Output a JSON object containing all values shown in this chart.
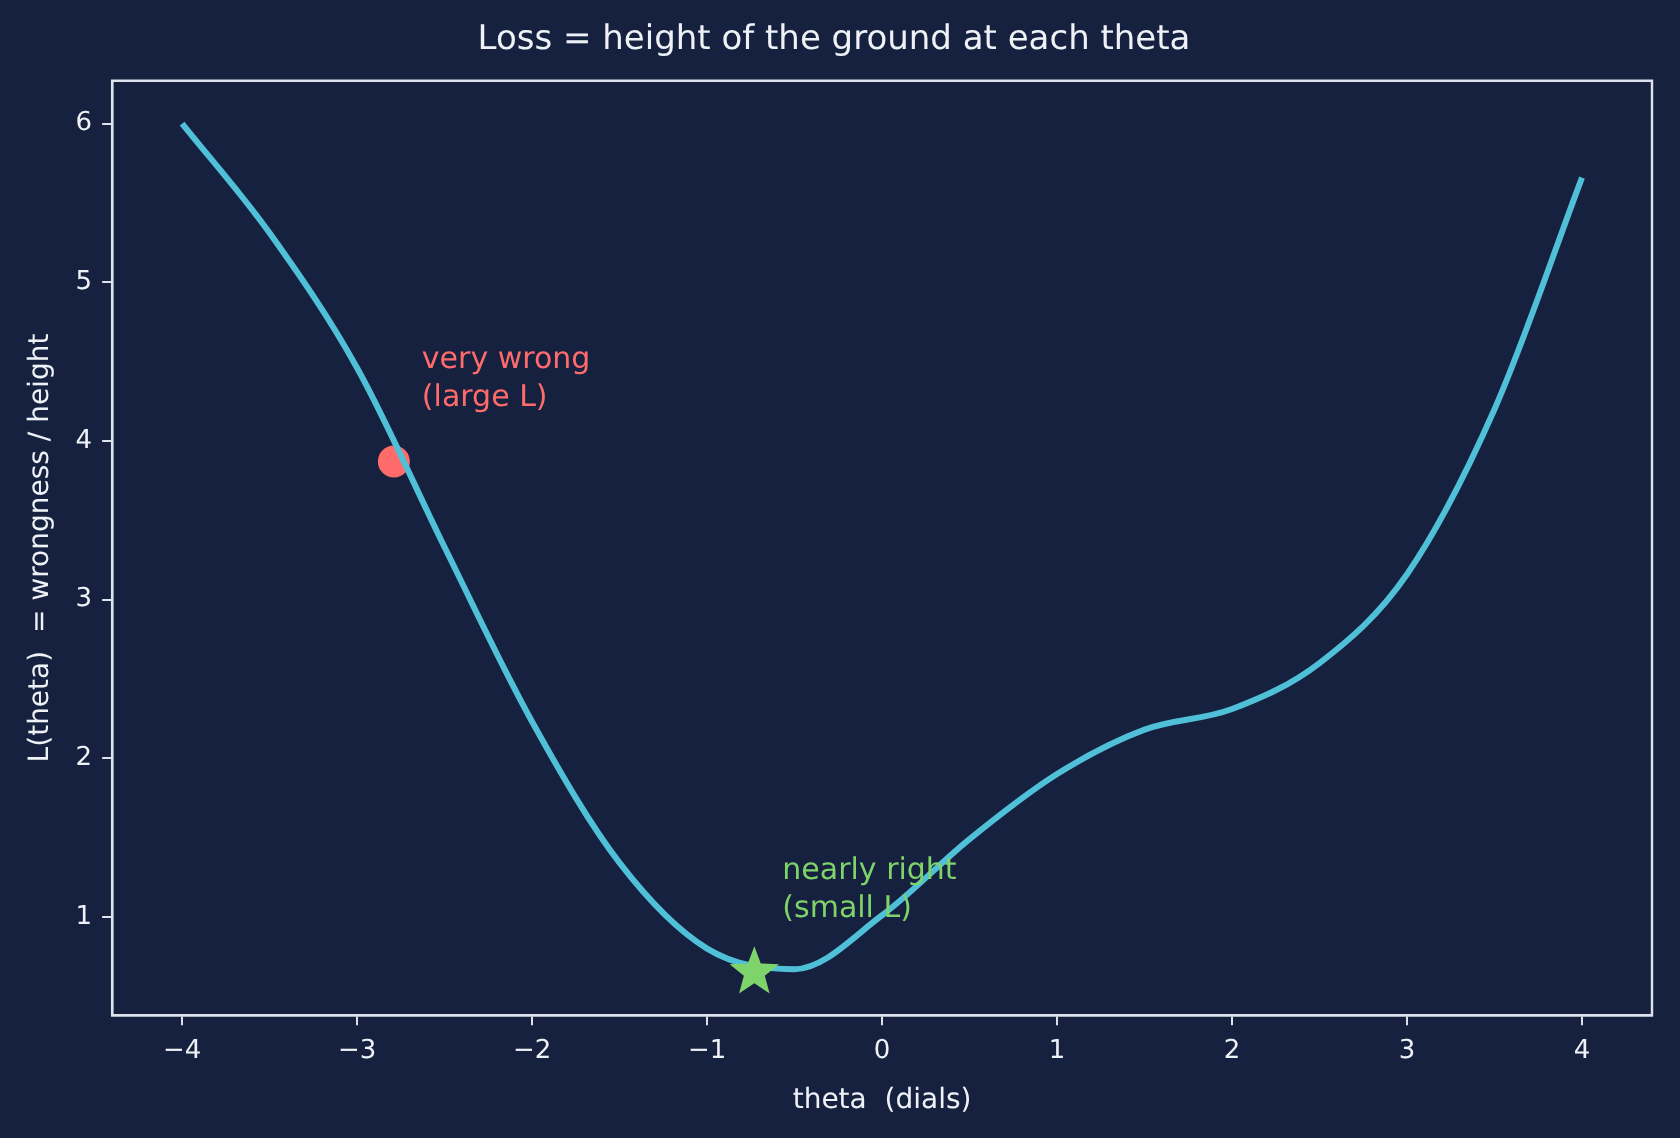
{
  "chart_data": {
    "type": "line",
    "title": "Loss = height of the ground at each theta",
    "xlabel": "theta  (dials)",
    "ylabel": "L(theta)  = wrongness / height",
    "xlim": [
      -4.4,
      4.4
    ],
    "xticks": [
      -4,
      -3,
      -2,
      -1,
      0,
      1,
      2,
      3,
      4
    ],
    "ylim": [
      0.38,
      6.27
    ],
    "yticks": [
      1,
      2,
      3,
      4,
      5,
      6
    ],
    "grid": false,
    "line_style": "solid",
    "series": [
      {
        "color": "#4fc0d8",
        "marker": "none",
        "x": [
          -4,
          -3.5,
          -3,
          -2.5,
          -2,
          -1.5,
          -1,
          -0.5,
          0,
          0.5,
          1,
          1.5,
          2,
          2.5,
          3,
          3.5,
          4
        ],
        "values": [
          6.0,
          5.31,
          4.46,
          3.33,
          2.23,
          1.34,
          0.8,
          0.67,
          1.01,
          1.49,
          1.9,
          2.18,
          2.31,
          2.6,
          3.16,
          4.2,
          5.66
        ]
      },
      {
        "type": "scatter",
        "color": "#ff6b6b",
        "marker": "circle",
        "x": [
          -2.79
        ],
        "values": [
          3.87
        ]
      },
      {
        "type": "scatter",
        "color": "#7ed36b",
        "marker": "star",
        "x": [
          -0.73
        ],
        "values": [
          0.65
        ]
      }
    ],
    "annotations": [
      "very wrong\n(large L)",
      "nearly right\n(small L)"
    ]
  }
}
